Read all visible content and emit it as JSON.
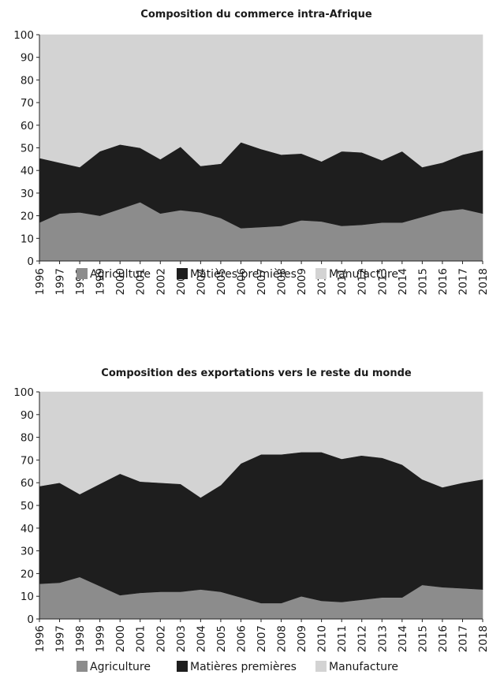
{
  "chart_data": [
    {
      "type": "area",
      "stacked": true,
      "title": "Composition du commerce intra-Afrique",
      "xlabel": "",
      "ylabel": "",
      "ylim": [
        0,
        100
      ],
      "yticks": [
        0,
        10,
        20,
        30,
        40,
        50,
        60,
        70,
        80,
        90,
        100
      ],
      "grid": false,
      "legend_position": "bottom",
      "x": [
        "1996",
        "1997",
        "1998",
        "1999",
        "2000",
        "2001",
        "2002",
        "2003",
        "2004",
        "2005",
        "2006",
        "2007",
        "2008",
        "2009",
        "2010",
        "2011",
        "2012",
        "2013",
        "2014",
        "2015",
        "2016",
        "2017",
        "2018"
      ],
      "series": [
        {
          "name": "Agriculture",
          "color": "#8c8c8c",
          "values": [
            17,
            21,
            21.5,
            20,
            23,
            26,
            21,
            22.5,
            21.5,
            19,
            14.5,
            15,
            15.5,
            18,
            17.5,
            15.5,
            16,
            17,
            17,
            19.5,
            22,
            23,
            21
          ]
        },
        {
          "name": "Matières premières",
          "color": "#1e1e1e",
          "values": [
            28.5,
            22.5,
            20,
            28.5,
            28.5,
            24,
            24,
            28,
            20.5,
            24,
            38,
            34.5,
            31.5,
            29.5,
            26.5,
            33,
            32,
            27.5,
            31.5,
            22,
            21.5,
            24,
            28
          ]
        },
        {
          "name": "Manufacture",
          "color": "#d3d3d3",
          "values": [
            54.5,
            56.5,
            58.5,
            51.5,
            48.5,
            50,
            55,
            49.5,
            58,
            57,
            47.5,
            50.5,
            53,
            52.5,
            56,
            51.5,
            52,
            55.5,
            51.5,
            58.5,
            56.5,
            53,
            51
          ]
        }
      ]
    },
    {
      "type": "area",
      "stacked": true,
      "title": "Composition des exportations vers le reste du monde",
      "xlabel": "",
      "ylabel": "",
      "ylim": [
        0,
        100
      ],
      "yticks": [
        0,
        10,
        20,
        30,
        40,
        50,
        60,
        70,
        80,
        90,
        100
      ],
      "grid": false,
      "legend_position": "bottom",
      "x": [
        "1996",
        "1997",
        "1998",
        "1999",
        "2000",
        "2001",
        "2002",
        "2003",
        "2004",
        "2005",
        "2006",
        "2007",
        "2008",
        "2009",
        "2010",
        "2011",
        "2012",
        "2013",
        "2014",
        "2015",
        "2016",
        "2017",
        "2018"
      ],
      "series": [
        {
          "name": "Agriculture",
          "color": "#8c8c8c",
          "values": [
            15.5,
            16,
            18.5,
            14.5,
            10.5,
            11.5,
            12,
            12,
            13,
            12,
            9.5,
            7,
            7,
            10,
            8,
            7.5,
            8.5,
            9.5,
            9.5,
            15,
            14,
            13.5,
            13
          ]
        },
        {
          "name": "Matières premières",
          "color": "#1e1e1e",
          "values": [
            43,
            44,
            36.5,
            45,
            53.5,
            49,
            48,
            47.5,
            40.5,
            47,
            59,
            65.5,
            65.5,
            63.5,
            65.5,
            63,
            63.5,
            61.5,
            58.5,
            46.5,
            44,
            46.5,
            48.5
          ]
        },
        {
          "name": "Manufacture",
          "color": "#d3d3d3",
          "values": [
            41.5,
            40,
            45,
            40.5,
            36,
            39.5,
            40,
            40.5,
            46.5,
            41,
            31.5,
            27.5,
            27.5,
            26.5,
            26.5,
            29.5,
            28,
            29,
            32,
            38.5,
            42,
            40,
            38.5
          ]
        }
      ]
    }
  ]
}
